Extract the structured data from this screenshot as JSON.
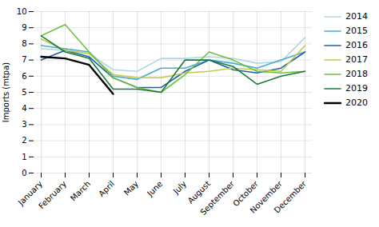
{
  "chart_data": {
    "type": "line",
    "categories": [
      "January",
      "February",
      "March",
      "April",
      "May",
      "June",
      "July",
      "August",
      "September",
      "October",
      "November",
      "December"
    ],
    "series": [
      {
        "name": "2014",
        "color": "#ADD8E6",
        "values": [
          7.7,
          7.6,
          7.4,
          6.4,
          6.3,
          7.1,
          7.1,
          7.2,
          7.1,
          6.8,
          6.9,
          8.4
        ]
      },
      {
        "name": "2015",
        "color": "#4BAAD3",
        "values": [
          7.9,
          7.7,
          7.5,
          6.0,
          5.8,
          6.5,
          6.5,
          7.0,
          6.8,
          6.5,
          7.0,
          7.5
        ]
      },
      {
        "name": "2016",
        "color": "#1F5FAA",
        "values": [
          7.0,
          7.6,
          7.2,
          5.9,
          5.3,
          5.3,
          6.3,
          7.0,
          6.4,
          6.2,
          6.5,
          7.5
        ]
      },
      {
        "name": "2017",
        "color": "#BDCC44",
        "values": [
          8.3,
          7.6,
          7.4,
          6.1,
          5.9,
          5.9,
          6.2,
          6.3,
          6.5,
          6.4,
          6.3,
          7.9
        ]
      },
      {
        "name": "2018",
        "color": "#6DC040",
        "values": [
          8.5,
          9.2,
          7.5,
          5.9,
          5.3,
          5.0,
          6.1,
          7.5,
          7.0,
          6.3,
          6.2,
          6.3
        ]
      },
      {
        "name": "2019",
        "color": "#1A7A3A",
        "values": [
          8.5,
          7.5,
          7.1,
          5.2,
          5.2,
          5.0,
          7.0,
          7.0,
          6.6,
          5.5,
          6.0,
          6.3
        ]
      },
      {
        "name": "2020",
        "color": "#000000",
        "values": [
          7.2,
          7.1,
          6.7,
          4.9,
          null,
          null,
          null,
          null,
          null,
          null,
          null,
          null
        ]
      }
    ],
    "ylabel": "Imports (mtpa)",
    "ylim": [
      0,
      10
    ],
    "yticks": [
      0,
      1,
      2,
      3,
      4,
      5,
      6,
      7,
      8,
      9,
      10
    ],
    "grid": true,
    "legend": "right"
  }
}
